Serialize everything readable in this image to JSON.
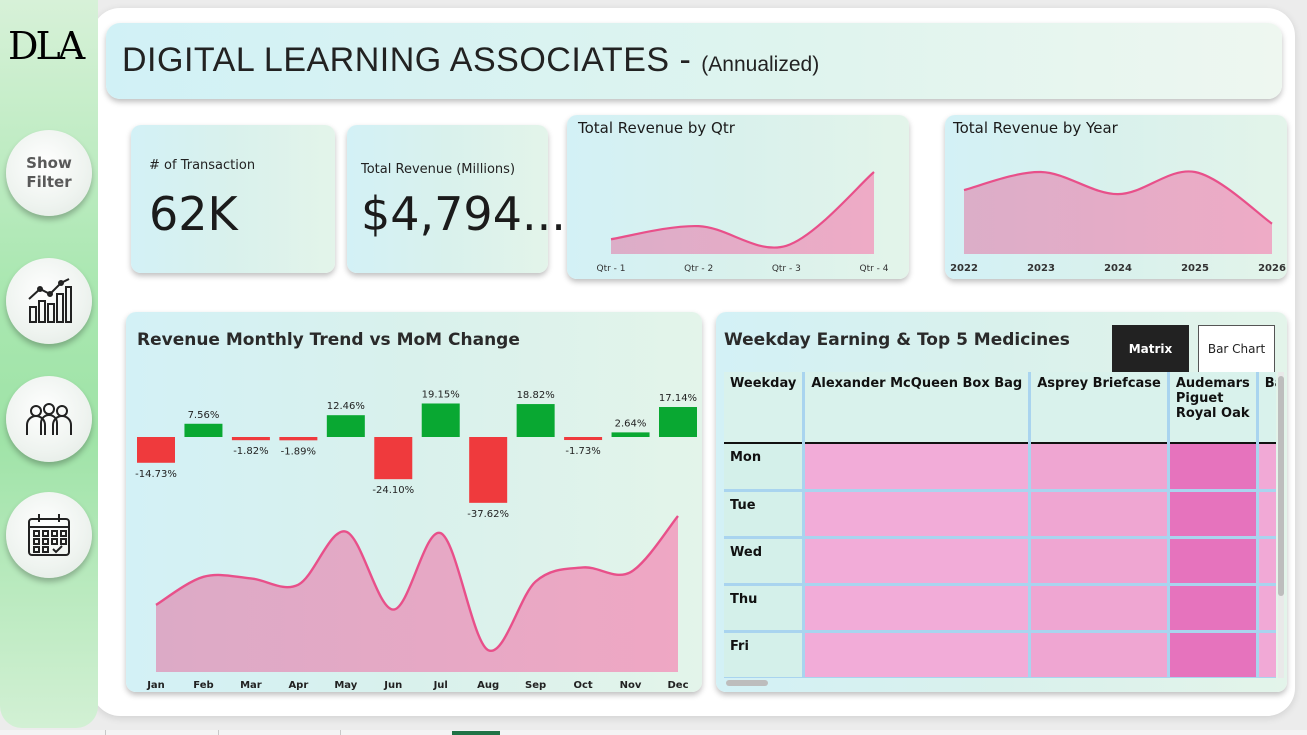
{
  "sidebar": {
    "logo": "DLA",
    "show_filter": "Show\nFilter",
    "buttons": [
      {
        "name": "chart-icon"
      },
      {
        "name": "people-icon"
      },
      {
        "name": "calendar-icon"
      }
    ]
  },
  "header": {
    "title": "DIGITAL LEARNING ASSOCIATES - ",
    "subtitle": "(Annualized)"
  },
  "kpis": {
    "transactions_label": "# of Transaction",
    "transactions_value": "62K",
    "revenue_label": "Total Revenue (Millions)",
    "revenue_value": "$4,794..."
  },
  "chart_data": [
    {
      "id": "qtr",
      "type": "area",
      "title": "Total Revenue by Qtr",
      "categories": [
        "Qtr - 1",
        "Qtr - 2",
        "Qtr - 3",
        "Qtr - 4"
      ],
      "values": [
        0.18,
        0.34,
        0.1,
        1.0
      ]
    },
    {
      "id": "year",
      "type": "area",
      "title": "Total Revenue by Year",
      "categories": [
        "2022",
        "2023",
        "2024",
        "2025",
        "2026"
      ],
      "values": [
        0.78,
        1.0,
        0.73,
        1.0,
        0.37
      ]
    },
    {
      "id": "mom",
      "type": "bar",
      "title": "Revenue Monthly Trend vs MoM Change",
      "categories": [
        "Jan",
        "Feb",
        "Mar",
        "Apr",
        "May",
        "Jun",
        "Jul",
        "Aug",
        "Sep",
        "Oct",
        "Nov",
        "Dec"
      ],
      "values": [
        -14.73,
        7.56,
        -1.82,
        -1.89,
        12.46,
        -24.1,
        19.15,
        -37.62,
        18.82,
        -1.73,
        2.64,
        17.14
      ],
      "labels": [
        "-14.73%",
        "7.56%",
        "-1.82%",
        "-1.89%",
        "12.46%",
        "-24.10%",
        "19.15%",
        "-37.62%",
        "18.82%",
        "-1.73%",
        "2.64%",
        "17.14%"
      ],
      "colors": {
        "positive": "#09a832",
        "negative": "#ef3a3d"
      }
    },
    {
      "id": "monthly",
      "type": "area",
      "categories": [
        "Jan",
        "Feb",
        "Mar",
        "Apr",
        "May",
        "Jun",
        "Jul",
        "Aug",
        "Sep",
        "Oct",
        "Nov",
        "Dec"
      ],
      "values": [
        0.43,
        0.61,
        0.6,
        0.56,
        0.9,
        0.4,
        0.89,
        0.14,
        0.58,
        0.67,
        0.64,
        1.0
      ]
    }
  ],
  "weekday": {
    "title": "Weekday Earning & Top 5 Medicines",
    "toggle_matrix": "Matrix",
    "toggle_bar": "Bar Chart",
    "headers": [
      "Weekday",
      "Alexander McQueen Box Bag",
      "Asprey Briefcase",
      "Audemars\nPiguet\nRoyal Oak",
      "Balenciaga"
    ],
    "rows": [
      "Mon",
      "Tue",
      "Wed",
      "Thu",
      "Fri"
    ],
    "cell_colors": [
      "#f2acd8",
      "#efa6d2",
      "#e673bd",
      "#f1a9d6"
    ]
  },
  "colors": {
    "accent": "#e8508a",
    "area_fill": "#e9a6c1"
  }
}
